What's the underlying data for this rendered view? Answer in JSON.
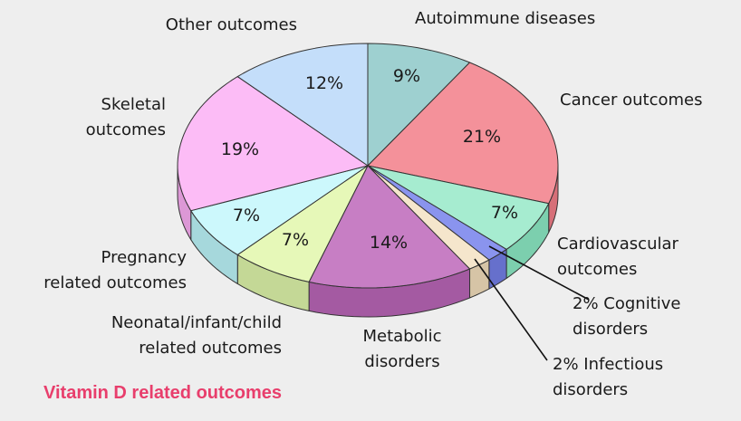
{
  "chart_data": {
    "type": "pie",
    "title": "Vitamin D related outcomes",
    "slices": [
      {
        "id": "autoimmune",
        "label_lines": [
          "Autoimmune diseases"
        ],
        "pct_label": "9%",
        "value": 9,
        "color": "#9ed0d0",
        "side_color": "#78b2b2"
      },
      {
        "id": "cancer",
        "label_lines": [
          "Cancer outcomes"
        ],
        "pct_label": "21%",
        "value": 21,
        "color": "#f4919a",
        "side_color": "#d66f78"
      },
      {
        "id": "cardiovascular",
        "label_lines": [
          "Cardiovascular",
          "outcomes"
        ],
        "pct_label": "7%",
        "value": 7,
        "color": "#a6ecd0",
        "side_color": "#7ccfae"
      },
      {
        "id": "cognitive",
        "label_lines": [
          "2% Cognitive",
          "disorders"
        ],
        "pct_label": "",
        "value": 2,
        "color": "#8a94ee",
        "side_color": "#6670cc"
      },
      {
        "id": "infectious",
        "label_lines": [
          "2% Infectious",
          "disorders"
        ],
        "pct_label": "",
        "value": 2,
        "color": "#f5e6cc",
        "side_color": "#d6c4a6"
      },
      {
        "id": "metabolic",
        "label_lines": [
          "Metabolic",
          "disorders"
        ],
        "pct_label": "14%",
        "value": 14,
        "color": "#c77ec4",
        "side_color": "#a45aa2"
      },
      {
        "id": "neonatal",
        "label_lines": [
          "Neonatal/infant/child",
          "related outcomes"
        ],
        "pct_label": "7%",
        "value": 7,
        "color": "#e6f8b8",
        "side_color": "#c4d896"
      },
      {
        "id": "pregnancy",
        "label_lines": [
          "Pregnancy",
          "related outcomes"
        ],
        "pct_label": "7%",
        "value": 7,
        "color": "#ccf8fc",
        "side_color": "#a6d8dc"
      },
      {
        "id": "skeletal",
        "label_lines": [
          "Skeletal",
          "outcomes"
        ],
        "pct_label": "19%",
        "value": 19,
        "color": "#fcbcf6",
        "side_color": "#dc98d6"
      },
      {
        "id": "other",
        "label_lines": [
          "Other outcomes"
        ],
        "pct_label": "12%",
        "value": 12,
        "color": "#c4defa",
        "side_color": "#a0bcdc"
      }
    ]
  }
}
